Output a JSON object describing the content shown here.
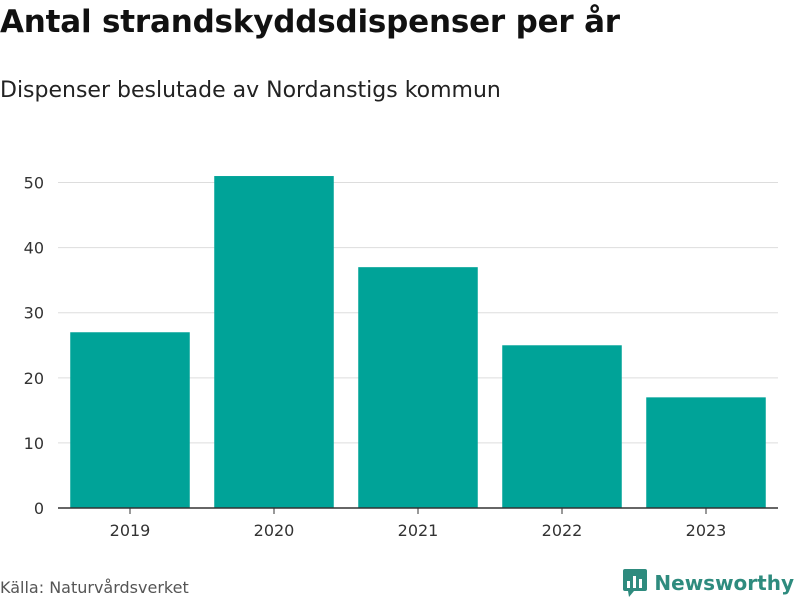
{
  "colors": {
    "bar": "#00a398",
    "grid": "#dddddd",
    "axis": "#333333",
    "brand": "#2e8b7e"
  },
  "header": {
    "title": "Antal strandskyddsdispenser per år",
    "subtitle": "Dispenser beslutade av Nordanstigs kommun"
  },
  "footer": {
    "source": "Källa: Naturvårdsverket",
    "brand": "Newsworthy",
    "brand_icon": "bar-chart-speech-bubble-icon"
  },
  "chart_data": {
    "type": "bar",
    "title": "Antal strandskyddsdispenser per år",
    "subtitle": "Dispenser beslutade av Nordanstigs kommun",
    "xlabel": "",
    "ylabel": "",
    "categories": [
      "2019",
      "2020",
      "2021",
      "2022",
      "2023"
    ],
    "values": [
      27,
      51,
      37,
      25,
      17
    ],
    "ylim": [
      0,
      55
    ],
    "yticks": [
      0,
      10,
      20,
      30,
      40,
      50
    ],
    "grid": true,
    "legend": "none"
  }
}
